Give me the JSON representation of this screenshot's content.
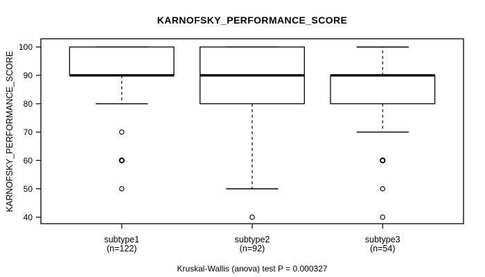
{
  "chart_data": {
    "type": "boxplot",
    "title": "KARNOFSKY_PERFORMANCE_SCORE",
    "ylabel": "KARNOFSKY_PERFORMANCE_SCORE",
    "caption": "Kruskal-Wallis (anova) test P = 0.000327",
    "yticks": [
      40,
      50,
      60,
      70,
      80,
      90,
      100
    ],
    "ylim": [
      37.7,
      102.9
    ],
    "grid": false,
    "line_color": "#000000",
    "box_fill": "#ffffff",
    "groups": [
      {
        "label": "subtype1",
        "n_label": "(n=122)",
        "q1": 90,
        "median": 90,
        "q3": 100,
        "whisker_low": 80,
        "whisker_high": 100,
        "outliers": [
          {
            "value": 70,
            "bold": false
          },
          {
            "value": 60,
            "bold": true
          },
          {
            "value": 50,
            "bold": false
          }
        ]
      },
      {
        "label": "subtype2",
        "n_label": "(n=92)",
        "q1": 80,
        "median": 90,
        "q3": 100,
        "whisker_low": 50,
        "whisker_high": 100,
        "outliers": [
          {
            "value": 40,
            "bold": false
          }
        ]
      },
      {
        "label": "subtype3",
        "n_label": "(n=54)",
        "q1": 80,
        "median": 90,
        "q3": 90,
        "whisker_low": 70,
        "whisker_high": 100,
        "outliers": [
          {
            "value": 60,
            "bold": true
          },
          {
            "value": 50,
            "bold": false
          },
          {
            "value": 40,
            "bold": false
          }
        ]
      }
    ]
  }
}
